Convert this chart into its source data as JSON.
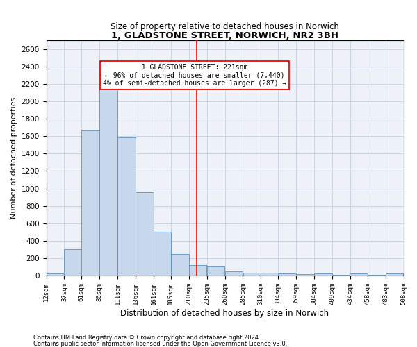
{
  "title": "1, GLADSTONE STREET, NORWICH, NR2 3BH",
  "subtitle": "Size of property relative to detached houses in Norwich",
  "xlabel": "Distribution of detached houses by size in Norwich",
  "ylabel": "Number of detached properties",
  "footnote1": "Contains HM Land Registry data © Crown copyright and database right 2024.",
  "footnote2": "Contains public sector information licensed under the Open Government Licence v3.0.",
  "annotation_line1": "  1 GLADSTONE STREET: 221sqm  ",
  "annotation_line2": "← 96% of detached houses are smaller (7,440)",
  "annotation_line3": "4% of semi-detached houses are larger (287) →",
  "bar_color": "#c8d8ec",
  "bar_edge_color": "#6090b8",
  "grid_color": "#c8d4e4",
  "bg_color": "#eef2f8",
  "vline_color": "red",
  "vline_x": 221,
  "bin_edges": [
    12,
    37,
    61,
    86,
    111,
    136,
    161,
    185,
    210,
    235,
    260,
    285,
    310,
    334,
    359,
    384,
    409,
    434,
    458,
    483,
    508
  ],
  "bin_labels": [
    "12sqm",
    "37sqm",
    "61sqm",
    "86sqm",
    "111sqm",
    "136sqm",
    "161sqm",
    "185sqm",
    "210sqm",
    "235sqm",
    "260sqm",
    "285sqm",
    "310sqm",
    "334sqm",
    "359sqm",
    "384sqm",
    "409sqm",
    "434sqm",
    "458sqm",
    "483sqm",
    "508sqm"
  ],
  "counts": [
    25,
    300,
    1670,
    2150,
    1590,
    960,
    500,
    250,
    120,
    105,
    50,
    35,
    35,
    20,
    15,
    25,
    10,
    20,
    5,
    25
  ],
  "ylim": [
    0,
    2700
  ],
  "yticks": [
    0,
    200,
    400,
    600,
    800,
    1000,
    1200,
    1400,
    1600,
    1800,
    2000,
    2200,
    2400,
    2600
  ],
  "figwidth": 6.0,
  "figheight": 5.0,
  "dpi": 100
}
